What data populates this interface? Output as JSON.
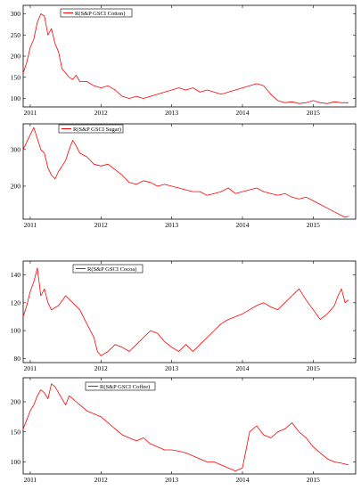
{
  "chart_data": [
    {
      "type": "line",
      "legend": "R(S&P GSCI Cotton)",
      "color": "#ff0000",
      "xlim": [
        2010.9,
        2015.6
      ],
      "ylim": [
        80,
        320
      ],
      "yticks": [
        100,
        150,
        200,
        250,
        300
      ],
      "xticks": [
        2011,
        2012,
        2013,
        2014,
        2015
      ],
      "xtick_labels": [
        "2011",
        "2012",
        "2013",
        "2014",
        "2015"
      ],
      "series": [
        {
          "x": [
            2010.9,
            2010.95,
            2011.0,
            2011.05,
            2011.1,
            2011.15,
            2011.2,
            2011.25,
            2011.3,
            2011.35,
            2011.4,
            2011.45,
            2011.5,
            2011.55,
            2011.6,
            2011.65,
            2011.7,
            2011.8,
            2011.9,
            2012.0,
            2012.1,
            2012.2,
            2012.3,
            2012.4,
            2012.5,
            2012.6,
            2012.7,
            2012.8,
            2012.9,
            2013.0,
            2013.1,
            2013.2,
            2013.3,
            2013.4,
            2013.5,
            2013.6,
            2013.7,
            2013.8,
            2013.9,
            2014.0,
            2014.1,
            2014.2,
            2014.3,
            2014.4,
            2014.5,
            2014.6,
            2014.7,
            2014.8,
            2014.9,
            2015.0,
            2015.1,
            2015.2,
            2015.3,
            2015.4,
            2015.5
          ],
          "values": [
            160,
            185,
            220,
            240,
            280,
            300,
            295,
            250,
            265,
            230,
            210,
            170,
            160,
            150,
            145,
            155,
            140,
            140,
            130,
            125,
            130,
            120,
            105,
            100,
            105,
            100,
            105,
            110,
            115,
            120,
            125,
            120,
            125,
            115,
            120,
            115,
            110,
            115,
            120,
            125,
            130,
            135,
            130,
            110,
            95,
            90,
            92,
            88,
            90,
            95,
            90,
            88,
            92,
            90,
            90
          ]
        }
      ]
    },
    {
      "type": "line",
      "legend": "R(S&P GSCI Sugar)",
      "color": "#ff0000",
      "xlim": [
        2010.9,
        2015.6
      ],
      "ylim": [
        110,
        370
      ],
      "yticks": [
        200,
        300
      ],
      "xticks": [
        2011,
        2012,
        2013,
        2014,
        2015
      ],
      "xtick_labels": [
        "2011",
        "2012",
        "2013",
        "2014",
        "2015"
      ],
      "series": [
        {
          "x": [
            2010.9,
            2010.95,
            2011.0,
            2011.05,
            2011.1,
            2011.15,
            2011.2,
            2011.25,
            2011.3,
            2011.35,
            2011.4,
            2011.5,
            2011.55,
            2011.6,
            2011.65,
            2011.7,
            2011.8,
            2011.9,
            2012.0,
            2012.1,
            2012.2,
            2012.3,
            2012.4,
            2012.5,
            2012.6,
            2012.7,
            2012.8,
            2012.9,
            2013.0,
            2013.1,
            2013.2,
            2013.3,
            2013.4,
            2013.5,
            2013.6,
            2013.7,
            2013.8,
            2013.9,
            2014.0,
            2014.1,
            2014.2,
            2014.3,
            2014.4,
            2014.5,
            2014.6,
            2014.7,
            2014.8,
            2014.9,
            2015.0,
            2015.1,
            2015.2,
            2015.3,
            2015.4,
            2015.45,
            2015.5
          ],
          "values": [
            300,
            320,
            340,
            360,
            330,
            300,
            290,
            250,
            230,
            220,
            240,
            270,
            300,
            325,
            310,
            290,
            280,
            260,
            255,
            260,
            245,
            230,
            210,
            205,
            215,
            210,
            200,
            205,
            200,
            195,
            190,
            185,
            185,
            175,
            180,
            185,
            195,
            180,
            185,
            190,
            195,
            185,
            180,
            175,
            180,
            170,
            165,
            170,
            160,
            150,
            140,
            130,
            120,
            115,
            118
          ]
        }
      ]
    },
    {
      "type": "line",
      "legend": "R(S&P GSCI Cocoa)",
      "color": "#ff0000",
      "xlim": [
        2010.9,
        2015.6
      ],
      "ylim": [
        77,
        150
      ],
      "yticks": [
        80,
        100,
        120,
        140
      ],
      "xticks": [
        2011,
        2012,
        2013,
        2014,
        2015
      ],
      "xtick_labels": [
        "2011",
        "2012",
        "2013",
        "2014",
        "2015"
      ],
      "series": [
        {
          "x": [
            2010.9,
            2010.95,
            2011.0,
            2011.05,
            2011.1,
            2011.15,
            2011.2,
            2011.25,
            2011.3,
            2011.4,
            2011.5,
            2011.6,
            2011.7,
            2011.8,
            2011.85,
            2011.9,
            2011.95,
            2012.0,
            2012.1,
            2012.2,
            2012.3,
            2012.4,
            2012.5,
            2012.6,
            2012.7,
            2012.8,
            2012.9,
            2013.0,
            2013.1,
            2013.2,
            2013.3,
            2013.4,
            2013.5,
            2013.6,
            2013.7,
            2013.8,
            2013.9,
            2014.0,
            2014.1,
            2014.2,
            2014.3,
            2014.4,
            2014.5,
            2014.6,
            2014.7,
            2014.8,
            2014.9,
            2015.0,
            2015.1,
            2015.2,
            2015.3,
            2015.35,
            2015.4,
            2015.45,
            2015.5
          ],
          "values": [
            110,
            118,
            128,
            135,
            145,
            125,
            130,
            120,
            115,
            118,
            125,
            120,
            115,
            105,
            100,
            95,
            85,
            82,
            85,
            90,
            88,
            85,
            90,
            95,
            100,
            98,
            92,
            88,
            85,
            90,
            85,
            90,
            95,
            100,
            105,
            108,
            110,
            112,
            115,
            118,
            120,
            117,
            115,
            120,
            125,
            130,
            122,
            115,
            108,
            112,
            118,
            125,
            130,
            120,
            122
          ]
        }
      ]
    },
    {
      "type": "line",
      "legend": "R(S&P GSCI Coffee)",
      "color": "#ff0000",
      "xlim": [
        2010.9,
        2015.6
      ],
      "ylim": [
        80,
        240
      ],
      "yticks": [
        100,
        150,
        200
      ],
      "xticks": [
        2011,
        2012,
        2013,
        2014,
        2015
      ],
      "xtick_labels": [
        "2011",
        "2012",
        "2013",
        "2014",
        "2015"
      ],
      "series": [
        {
          "x": [
            2010.9,
            2010.95,
            2011.0,
            2011.05,
            2011.1,
            2011.15,
            2011.2,
            2011.25,
            2011.3,
            2011.35,
            2011.4,
            2011.45,
            2011.5,
            2011.55,
            2011.6,
            2011.65,
            2011.7,
            2011.8,
            2011.9,
            2012.0,
            2012.1,
            2012.2,
            2012.3,
            2012.4,
            2012.5,
            2012.6,
            2012.7,
            2012.8,
            2012.9,
            2013.0,
            2013.1,
            2013.2,
            2013.3,
            2013.4,
            2013.5,
            2013.6,
            2013.7,
            2013.8,
            2013.9,
            2014.0,
            2014.05,
            2014.1,
            2014.2,
            2014.3,
            2014.4,
            2014.5,
            2014.6,
            2014.7,
            2014.8,
            2014.9,
            2015.0,
            2015.1,
            2015.2,
            2015.3,
            2015.4,
            2015.5
          ],
          "values": [
            155,
            170,
            185,
            195,
            210,
            220,
            215,
            205,
            230,
            225,
            215,
            205,
            195,
            210,
            205,
            200,
            195,
            185,
            180,
            175,
            165,
            155,
            145,
            140,
            135,
            140,
            130,
            125,
            120,
            120,
            118,
            115,
            110,
            105,
            100,
            100,
            95,
            90,
            85,
            90,
            120,
            150,
            160,
            145,
            140,
            150,
            155,
            165,
            150,
            140,
            125,
            115,
            105,
            100,
            98,
            95
          ]
        }
      ]
    }
  ]
}
